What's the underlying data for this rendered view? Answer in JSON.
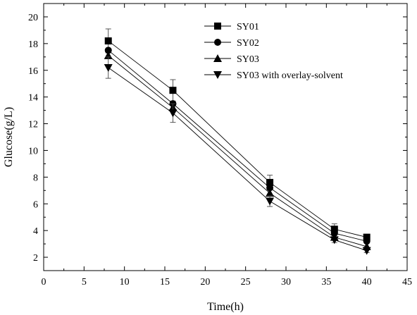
{
  "chart_data": {
    "type": "line",
    "xlabel": "Time(h)",
    "ylabel": "Glucose(g/L)",
    "xlim": [
      0,
      45
    ],
    "ylim": [
      1,
      21
    ],
    "xticks": [
      0,
      5,
      10,
      15,
      20,
      25,
      30,
      35,
      40,
      45
    ],
    "yticks": [
      2,
      4,
      6,
      8,
      10,
      12,
      14,
      16,
      18,
      20
    ],
    "grid": false,
    "legend_position": "top-right",
    "x": [
      8,
      16,
      28,
      36,
      40
    ],
    "series": [
      {
        "name": "SY01",
        "marker": "square",
        "color": "#000000",
        "values": [
          18.2,
          14.5,
          7.6,
          4.1,
          3.5
        ],
        "errors": [
          0.9,
          0.8,
          0.55,
          0.4,
          0.2
        ]
      },
      {
        "name": "SY02",
        "marker": "circle",
        "color": "#000000",
        "values": [
          17.5,
          13.5,
          7.2,
          3.8,
          3.2
        ],
        "errors": [
          0,
          0,
          0,
          0,
          0
        ]
      },
      {
        "name": "SY03",
        "marker": "triangle-up",
        "color": "#000000",
        "values": [
          17.1,
          13.2,
          6.8,
          3.5,
          2.8
        ],
        "errors": [
          0,
          0,
          0,
          0,
          0
        ]
      },
      {
        "name": "SY03 with overlay-solvent",
        "marker": "triangle-down",
        "color": "#000000",
        "values": [
          16.2,
          12.8,
          6.2,
          3.3,
          2.5
        ],
        "errors": [
          0.8,
          0.7,
          0.4,
          0.2,
          0.15
        ]
      }
    ]
  }
}
